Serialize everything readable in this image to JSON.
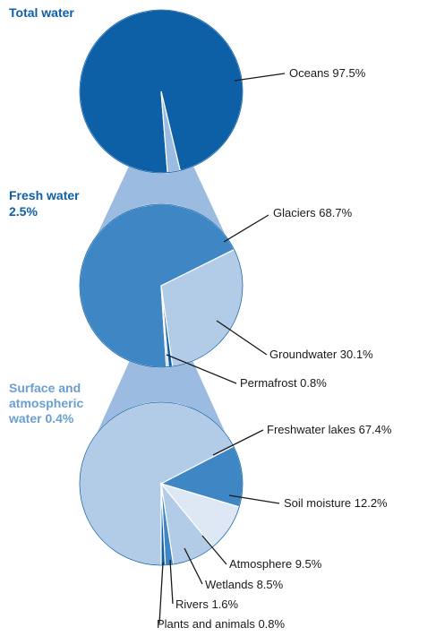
{
  "colors": {
    "dark": "#0d5fa6",
    "medium": "#3e86c4",
    "light": "#b2cbe6",
    "pale": "#dde8f4",
    "funnel": "#9bbce0",
    "title_dark": "#0d5fa6",
    "title_light": "#6b9fd2"
  },
  "chart_data": [
    {
      "type": "pie",
      "title_lines": [
        "Total water"
      ],
      "slices": [
        {
          "label": "Oceans",
          "value": 97.5,
          "text": "Oceans 97.5%",
          "color": "dark"
        },
        {
          "label": "Fresh water",
          "value": 2.5,
          "text": "",
          "color": "funnel"
        }
      ]
    },
    {
      "type": "pie",
      "title_lines": [
        "Fresh water",
        "2.5%"
      ],
      "slices": [
        {
          "label": "Glaciers",
          "value": 68.7,
          "text": "Glaciers 68.7%",
          "color": "medium"
        },
        {
          "label": "Groundwater",
          "value": 30.1,
          "text": "Groundwater 30.1%",
          "color": "light"
        },
        {
          "label": "Permafrost",
          "value": 0.8,
          "text": "Permafrost 0.8%",
          "color": "dark"
        },
        {
          "label": "Surface and atmospheric water",
          "value": 0.4,
          "text": "",
          "color": "light"
        }
      ]
    },
    {
      "type": "pie",
      "title_lines": [
        "Surface and",
        "atmospheric",
        "water 0.4%"
      ],
      "slices": [
        {
          "label": "Freshwater lakes",
          "value": 67.4,
          "text": "Freshwater lakes 67.4%",
          "color": "light"
        },
        {
          "label": "Soil moisture",
          "value": 12.2,
          "text": "Soil moisture 12.2%",
          "color": "medium"
        },
        {
          "label": "Atmosphere",
          "value": 9.5,
          "text": "Atmosphere 9.5%",
          "color": "pale"
        },
        {
          "label": "Wetlands",
          "value": 8.5,
          "text": "Wetlands 8.5%",
          "color": "light"
        },
        {
          "label": "Rivers",
          "value": 1.6,
          "text": "Rivers 1.6%",
          "color": "medium"
        },
        {
          "label": "Plants and animals",
          "value": 0.8,
          "text": "Plants and animals 0.8%",
          "color": "dark"
        }
      ]
    }
  ]
}
